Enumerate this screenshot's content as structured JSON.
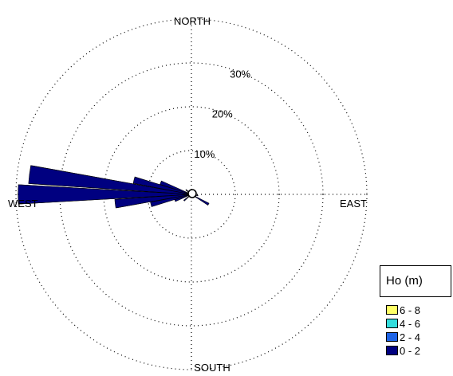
{
  "chart_data": {
    "type": "wind-rose",
    "directions": {
      "north": "NORTH",
      "south": "SOUTH",
      "east": "EAST",
      "west": "WEST"
    },
    "ring_labels": [
      "10%",
      "20%",
      "30%"
    ],
    "ring_values": [
      10,
      20,
      30
    ],
    "rmax": 40,
    "legend": {
      "title": "Ho (m)",
      "placement": "bottom-right",
      "bins": [
        {
          "label": "6 - 8",
          "color": "#ffff66"
        },
        {
          "label": "4 - 6",
          "color": "#33dddd"
        },
        {
          "label": "2 - 4",
          "color": "#1e64e6"
        },
        {
          "label": "0 - 2",
          "color": "#000080"
        }
      ]
    },
    "sectors": [
      {
        "direction_deg": 270,
        "bins": {
          "0 - 2": 39.5,
          "2 - 4": 39.0
        }
      },
      {
        "direction_deg": 277,
        "bins": {
          "0 - 2": 37.2,
          "2 - 4": 36.8
        }
      },
      {
        "direction_deg": 284,
        "bins": {
          "0 - 2": 13.5
        }
      },
      {
        "direction_deg": 291,
        "bins": {
          "0 - 2": 7.5
        }
      },
      {
        "direction_deg": 263,
        "bins": {
          "0 - 2": 17.5,
          "2 - 4": 17.2
        }
      },
      {
        "direction_deg": 256,
        "bins": {
          "0 - 2": 9.5
        }
      },
      {
        "direction_deg": 249,
        "bins": {
          "0 - 2": 4.0
        }
      },
      {
        "direction_deg": 120,
        "bins": {
          "0 - 2": 4.5
        }
      },
      {
        "direction_deg": 100,
        "bins": {
          "0 - 2": 1.5
        }
      },
      {
        "direction_deg": 230,
        "bins": {
          "0 - 2": 2.2
        }
      },
      {
        "direction_deg": 310,
        "bins": {
          "0 - 2": 1.6
        }
      }
    ]
  }
}
